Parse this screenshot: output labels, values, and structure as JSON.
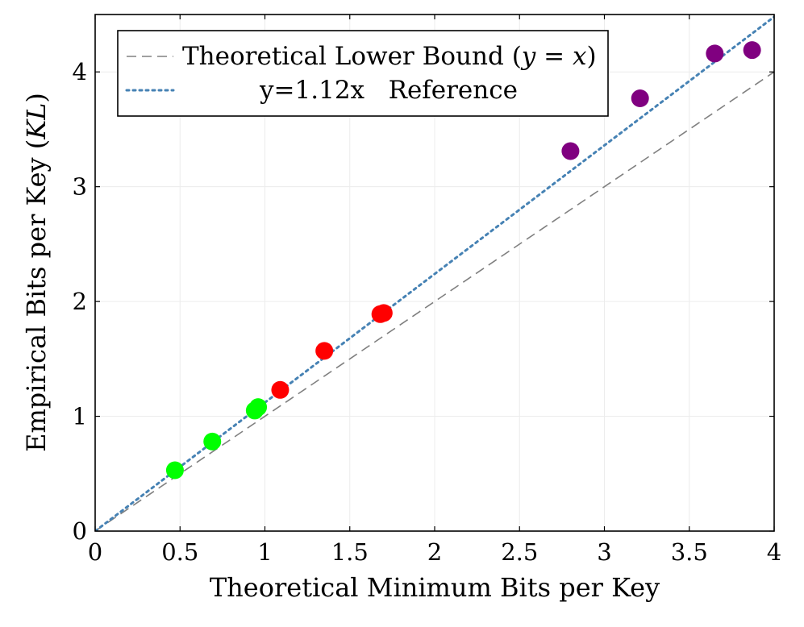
{
  "chart_data": {
    "type": "scatter",
    "title": "",
    "xlabel": "Theoretical Minimum Bits per Key",
    "ylabel": "Empirical Bits per Key (KL)",
    "ylabel_parts": {
      "text": "Empirical Bits per Key ",
      "open": "(",
      "math": "KL",
      "close": ")"
    },
    "xlim": [
      0,
      4
    ],
    "ylim": [
      0,
      4.5
    ],
    "x_ticks": [
      0,
      0.5,
      1,
      1.5,
      2,
      2.5,
      3,
      3.5,
      4
    ],
    "x_tick_labels": [
      "0",
      "0.5",
      "1",
      "1.5",
      "2",
      "2.5",
      "3",
      "3.5",
      "4"
    ],
    "y_ticks": [
      0,
      1,
      2,
      3,
      4
    ],
    "y_tick_labels": [
      "0",
      "1",
      "2",
      "3",
      "4"
    ],
    "grid": true,
    "legend_position": "top-left",
    "lines": [
      {
        "name": "Theoretical Lower Bound (y = x)",
        "name_parts": {
          "text": "Theoretical Lower Bound ",
          "open": "(",
          "math_a": "y",
          "eq": " = ",
          "math_b": "x",
          "close": ")"
        },
        "slope": 1.0,
        "color": "#808080",
        "style": "dashed"
      },
      {
        "name": "y=1.12x   Reference",
        "slope": 1.12,
        "color": "#4682b4",
        "style": "dotted"
      }
    ],
    "series": [
      {
        "color": "#00ff00",
        "points": [
          {
            "x": 0.47,
            "y": 0.53
          },
          {
            "x": 0.69,
            "y": 0.78
          },
          {
            "x": 0.94,
            "y": 1.05
          },
          {
            "x": 0.96,
            "y": 1.08
          }
        ]
      },
      {
        "color": "#ff0000",
        "points": [
          {
            "x": 1.09,
            "y": 1.23
          },
          {
            "x": 1.35,
            "y": 1.57
          },
          {
            "x": 1.68,
            "y": 1.89
          },
          {
            "x": 1.7,
            "y": 1.9
          }
        ]
      },
      {
        "color": "#800080",
        "points": [
          {
            "x": 2.8,
            "y": 3.31
          },
          {
            "x": 3.21,
            "y": 3.77
          },
          {
            "x": 3.65,
            "y": 4.16
          },
          {
            "x": 3.87,
            "y": 4.19
          }
        ]
      }
    ]
  }
}
